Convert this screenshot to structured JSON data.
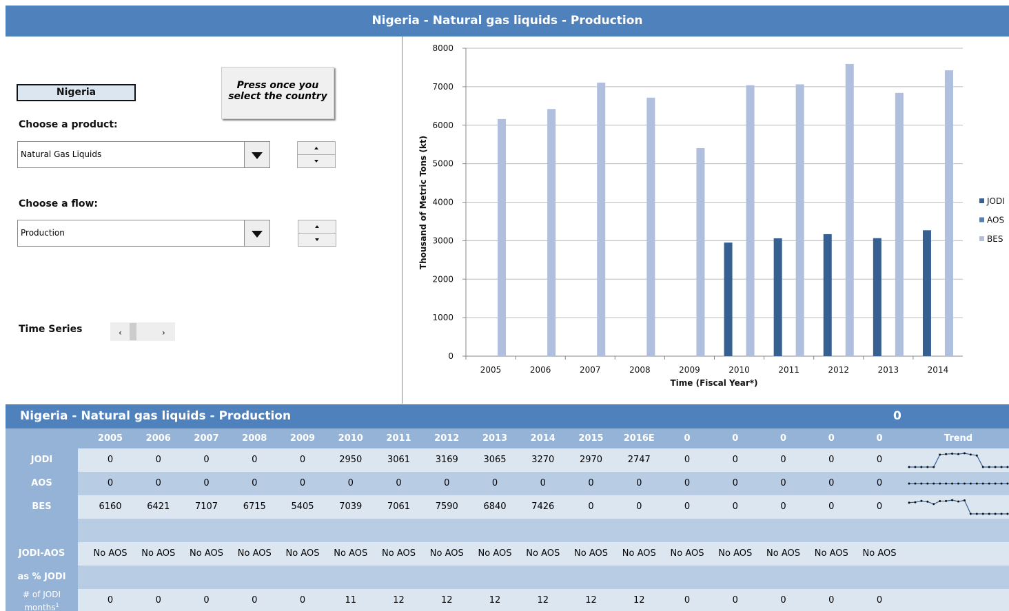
{
  "header": {
    "title": "Nigeria - Natural gas liquids - Production"
  },
  "controls": {
    "country": "Nigeria",
    "button": "Press once you select the country",
    "product_label": "Choose a product:",
    "product": "Natural Gas Liquids",
    "flow_label": "Choose a flow:",
    "flow": "Production",
    "time_series": "Time Series"
  },
  "chart_data": {
    "type": "bar",
    "categories": [
      "2005",
      "2006",
      "2007",
      "2008",
      "2009",
      "2010",
      "2011",
      "2012",
      "2013",
      "2014"
    ],
    "series": [
      {
        "name": "JODI",
        "color": "#366092",
        "values": [
          0,
          0,
          0,
          0,
          0,
          2950,
          3061,
          3169,
          3065,
          3270
        ]
      },
      {
        "name": "AOS",
        "color": "#4f81bd",
        "values": [
          0,
          0,
          0,
          0,
          0,
          0,
          0,
          0,
          0,
          0
        ]
      },
      {
        "name": "BES",
        "color": "#b0bfdd",
        "values": [
          6160,
          6421,
          7107,
          6715,
          5405,
          7039,
          7061,
          7590,
          6840,
          7426
        ]
      }
    ],
    "y_label": "Thousand of Metric Tons (kt)",
    "x_label": "Time (Fiscal  Year*)",
    "ylim": [
      0,
      8000
    ],
    "yticks": [
      0,
      1000,
      2000,
      3000,
      4000,
      5000,
      6000,
      7000,
      8000
    ],
    "grid": true,
    "legend": "right"
  },
  "table": {
    "title": "Nigeria - Natural gas liquids - Production",
    "title_value": "0",
    "columns": [
      "2005",
      "2006",
      "2007",
      "2008",
      "2009",
      "2010",
      "2011",
      "2012",
      "2013",
      "2014",
      "2015",
      "2016E",
      "0",
      "0",
      "0",
      "0",
      "0"
    ],
    "trend_header": "Trend",
    "rows": [
      {
        "label": "JODI",
        "values": [
          0,
          0,
          0,
          0,
          0,
          2950,
          3061,
          3169,
          3065,
          3270,
          2970,
          2747,
          0,
          0,
          0,
          0,
          0
        ]
      },
      {
        "label": "AOS",
        "values": [
          0,
          0,
          0,
          0,
          0,
          0,
          0,
          0,
          0,
          0,
          0,
          0,
          0,
          0,
          0,
          0,
          0
        ]
      },
      {
        "label": "BES",
        "values": [
          6160,
          6421,
          7107,
          6715,
          5405,
          7039,
          7061,
          7590,
          6840,
          7426,
          0,
          0,
          0,
          0,
          0,
          0,
          0
        ]
      }
    ],
    "diff_label": "JODI-AOS",
    "diff_values": [
      "No AOS",
      "No AOS",
      "No AOS",
      "No AOS",
      "No AOS",
      "No AOS",
      "No AOS",
      "No AOS",
      "No AOS",
      "No AOS",
      "No AOS",
      "No AOS",
      "No AOS",
      "No AOS",
      "No AOS",
      "No AOS",
      "No AOS"
    ],
    "pct_label": "as % JODI",
    "months_label": "# of JODI months",
    "months_note": "1",
    "months_values": [
      0,
      0,
      0,
      0,
      0,
      11,
      12,
      12,
      12,
      12,
      12,
      12,
      0,
      0,
      0,
      0,
      0
    ]
  }
}
